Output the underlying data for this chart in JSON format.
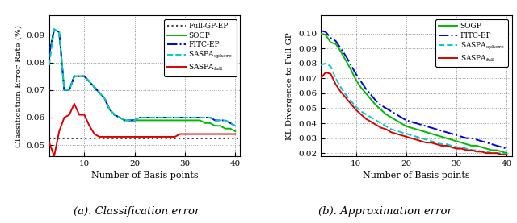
{
  "left": {
    "xlabel": "Number of Basis points",
    "ylabel": "Classification Error Rate (%)",
    "ylim": [
      0.046,
      0.097
    ],
    "yticks": [
      0.05,
      0.06,
      0.07,
      0.08,
      0.09
    ],
    "xticks": [
      10,
      20,
      30,
      40
    ],
    "x": [
      3,
      4,
      5,
      6,
      7,
      8,
      9,
      10,
      11,
      12,
      13,
      14,
      15,
      16,
      17,
      18,
      19,
      20,
      21,
      22,
      23,
      24,
      25,
      26,
      27,
      28,
      29,
      30,
      31,
      32,
      33,
      34,
      35,
      36,
      37,
      38,
      39,
      40
    ],
    "full_gp_ep": 0.0525,
    "sogp": [
      0.083,
      0.092,
      0.091,
      0.07,
      0.07,
      0.075,
      0.075,
      0.075,
      0.073,
      0.071,
      0.069,
      0.067,
      0.063,
      0.061,
      0.06,
      0.059,
      0.059,
      0.059,
      0.059,
      0.059,
      0.059,
      0.059,
      0.059,
      0.059,
      0.059,
      0.059,
      0.059,
      0.059,
      0.059,
      0.059,
      0.059,
      0.058,
      0.058,
      0.057,
      0.057,
      0.056,
      0.056,
      0.055
    ],
    "fitc_ep": [
      0.083,
      0.092,
      0.091,
      0.07,
      0.07,
      0.075,
      0.075,
      0.075,
      0.073,
      0.071,
      0.069,
      0.067,
      0.063,
      0.061,
      0.06,
      0.059,
      0.059,
      0.059,
      0.06,
      0.06,
      0.06,
      0.06,
      0.06,
      0.06,
      0.06,
      0.06,
      0.06,
      0.06,
      0.06,
      0.06,
      0.06,
      0.06,
      0.06,
      0.059,
      0.059,
      0.059,
      0.058,
      0.057
    ],
    "saspa_sphere": [
      0.079,
      0.092,
      0.091,
      0.07,
      0.07,
      0.075,
      0.075,
      0.075,
      0.073,
      0.071,
      0.069,
      0.067,
      0.063,
      0.061,
      0.06,
      0.059,
      0.059,
      0.059,
      0.06,
      0.06,
      0.06,
      0.06,
      0.06,
      0.06,
      0.06,
      0.06,
      0.06,
      0.06,
      0.06,
      0.06,
      0.06,
      0.06,
      0.06,
      0.059,
      0.059,
      0.059,
      0.058,
      0.057
    ],
    "saspa_full": [
      0.051,
      0.046,
      0.055,
      0.06,
      0.061,
      0.065,
      0.061,
      0.061,
      0.057,
      0.054,
      0.053,
      0.053,
      0.053,
      0.053,
      0.053,
      0.053,
      0.053,
      0.053,
      0.053,
      0.053,
      0.053,
      0.053,
      0.053,
      0.053,
      0.053,
      0.053,
      0.054,
      0.054,
      0.054,
      0.054,
      0.054,
      0.054,
      0.054,
      0.054,
      0.054,
      0.054,
      0.054,
      0.054
    ],
    "sogp_color": "#00bb00",
    "fitc_color": "#0000dd",
    "saspa_sphere_color": "#00cccc",
    "saspa_full_color": "#dd0000",
    "full_gp_color": "#444444"
  },
  "right": {
    "xlabel": "Number of Basis points",
    "ylabel": "KL Divergence to Full GP",
    "ylim": [
      0.018,
      0.112
    ],
    "yticks": [
      0.02,
      0.03,
      0.04,
      0.05,
      0.06,
      0.07,
      0.08,
      0.09,
      0.1
    ],
    "xticks": [
      10,
      20,
      30,
      40
    ],
    "x": [
      3,
      4,
      5,
      6,
      7,
      8,
      9,
      10,
      11,
      12,
      13,
      14,
      15,
      16,
      17,
      18,
      19,
      20,
      21,
      22,
      23,
      24,
      25,
      26,
      27,
      28,
      29,
      30,
      31,
      32,
      33,
      34,
      35,
      36,
      37,
      38,
      39,
      40
    ],
    "sogp": [
      0.1,
      0.099,
      0.094,
      0.093,
      0.088,
      0.082,
      0.076,
      0.069,
      0.064,
      0.06,
      0.056,
      0.052,
      0.049,
      0.046,
      0.044,
      0.042,
      0.04,
      0.038,
      0.037,
      0.036,
      0.035,
      0.034,
      0.033,
      0.032,
      0.031,
      0.03,
      0.029,
      0.028,
      0.027,
      0.026,
      0.025,
      0.025,
      0.024,
      0.023,
      0.022,
      0.022,
      0.021,
      0.02
    ],
    "fitc_ep": [
      0.102,
      0.101,
      0.097,
      0.095,
      0.09,
      0.085,
      0.079,
      0.073,
      0.068,
      0.063,
      0.059,
      0.055,
      0.052,
      0.05,
      0.048,
      0.046,
      0.044,
      0.042,
      0.041,
      0.04,
      0.039,
      0.038,
      0.037,
      0.036,
      0.035,
      0.034,
      0.033,
      0.032,
      0.031,
      0.03,
      0.03,
      0.029,
      0.028,
      0.027,
      0.026,
      0.025,
      0.024,
      0.023
    ],
    "saspa_sphere": [
      0.079,
      0.08,
      0.078,
      0.07,
      0.064,
      0.059,
      0.055,
      0.051,
      0.048,
      0.046,
      0.044,
      0.042,
      0.04,
      0.038,
      0.036,
      0.035,
      0.034,
      0.033,
      0.032,
      0.031,
      0.03,
      0.029,
      0.028,
      0.027,
      0.026,
      0.026,
      0.025,
      0.024,
      0.024,
      0.023,
      0.022,
      0.022,
      0.021,
      0.021,
      0.02,
      0.02,
      0.02,
      0.019
    ],
    "saspa_full": [
      0.07,
      0.074,
      0.073,
      0.066,
      0.061,
      0.057,
      0.053,
      0.049,
      0.046,
      0.043,
      0.041,
      0.039,
      0.037,
      0.036,
      0.034,
      0.033,
      0.032,
      0.031,
      0.03,
      0.029,
      0.028,
      0.027,
      0.027,
      0.026,
      0.025,
      0.025,
      0.024,
      0.023,
      0.023,
      0.022,
      0.022,
      0.021,
      0.021,
      0.02,
      0.02,
      0.02,
      0.019,
      0.019
    ],
    "sogp_color": "#00bb00",
    "fitc_color": "#0000dd",
    "saspa_sphere_color": "#00cccc",
    "saspa_full_color": "#dd0000"
  },
  "caption_left": "(a). Classification error",
  "caption_right": "(b). Approximation error",
  "bg_color": "#ffffff",
  "figure_bg": "#ffffff"
}
